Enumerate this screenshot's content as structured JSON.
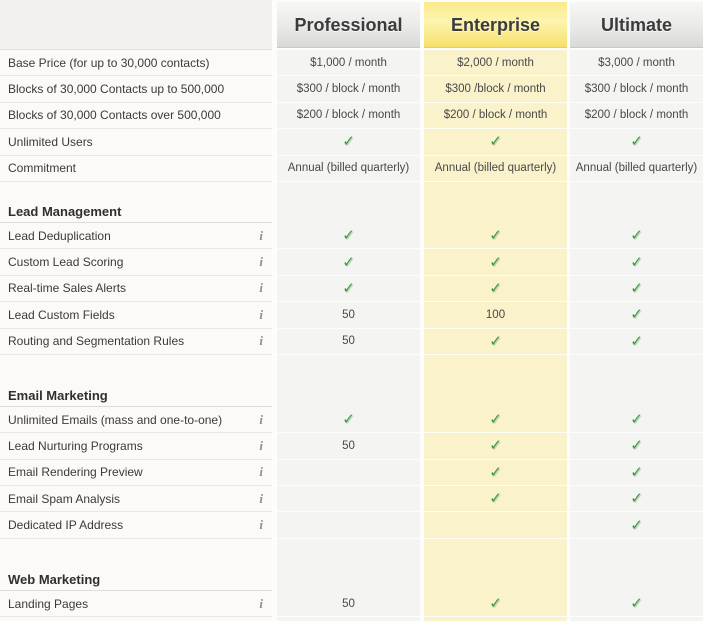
{
  "table": {
    "columns": [
      {
        "id": "professional",
        "label": "Professional",
        "highlighted": false
      },
      {
        "id": "enterprise",
        "label": "Enterprise",
        "highlighted": true
      },
      {
        "id": "ultimate",
        "label": "Ultimate",
        "highlighted": false
      }
    ],
    "sections": [
      {
        "title": "",
        "rows": [
          {
            "label": "Base Price (for up to 30,000 contacts)",
            "info": false,
            "values": [
              "$1,000 / month",
              "$2,000 / month",
              "$3,000 / month"
            ]
          },
          {
            "label": "Blocks of 30,000 Contacts up to 500,000",
            "info": false,
            "values": [
              "$300 / block / month",
              "$300 /block / month",
              "$300 / block / month"
            ]
          },
          {
            "label": "Blocks of 30,000 Contacts over 500,000",
            "info": false,
            "values": [
              "$200 / block / month",
              "$200 / block / month",
              "$200 / block / month"
            ]
          },
          {
            "label": "Unlimited Users",
            "info": false,
            "values": [
              "✓",
              "✓",
              "✓"
            ]
          },
          {
            "label": "Commitment",
            "info": false,
            "values": [
              "Annual (billed quarterly)",
              "Annual (billed quarterly)",
              "Annual (billed quarterly)"
            ]
          }
        ]
      },
      {
        "title": "Lead Management",
        "rows": [
          {
            "label": "Lead Deduplication",
            "info": true,
            "values": [
              "✓",
              "✓",
              "✓"
            ]
          },
          {
            "label": "Custom Lead Scoring",
            "info": true,
            "values": [
              "✓",
              "✓",
              "✓"
            ]
          },
          {
            "label": "Real-time Sales Alerts",
            "info": true,
            "values": [
              "✓",
              "✓",
              "✓"
            ]
          },
          {
            "label": "Lead Custom Fields",
            "info": true,
            "values": [
              "50",
              "100",
              "✓"
            ]
          },
          {
            "label": "Routing and Segmentation Rules",
            "info": true,
            "values": [
              "50",
              "✓",
              "✓"
            ]
          }
        ]
      },
      {
        "title": "Email Marketing",
        "rows": [
          {
            "label": "Unlimited Emails (mass and one-to-one)",
            "info": true,
            "values": [
              "✓",
              "✓",
              "✓"
            ]
          },
          {
            "label": "Lead Nurturing Programs",
            "info": true,
            "values": [
              "50",
              "✓",
              "✓"
            ]
          },
          {
            "label": "Email Rendering Preview",
            "info": true,
            "values": [
              "",
              "✓",
              "✓"
            ]
          },
          {
            "label": "Email Spam Analysis",
            "info": true,
            "values": [
              "",
              "✓",
              "✓"
            ]
          },
          {
            "label": "Dedicated IP Address",
            "info": true,
            "values": [
              "",
              "",
              "✓"
            ]
          }
        ]
      },
      {
        "title": "Web Marketing",
        "rows": [
          {
            "label": "Landing Pages",
            "info": true,
            "values": [
              "50",
              "✓",
              "✓"
            ]
          }
        ]
      }
    ]
  },
  "icons": {
    "info_glyph": "i",
    "check_glyph": "✓"
  },
  "colors": {
    "enterprise_column_bg": "#f9f2cb",
    "plan_column_bg": "#f4f4f2",
    "check_green": "#3c9e3c",
    "header_text": "#3b3b3b",
    "enterprise_header_gold": "#f6df66"
  }
}
